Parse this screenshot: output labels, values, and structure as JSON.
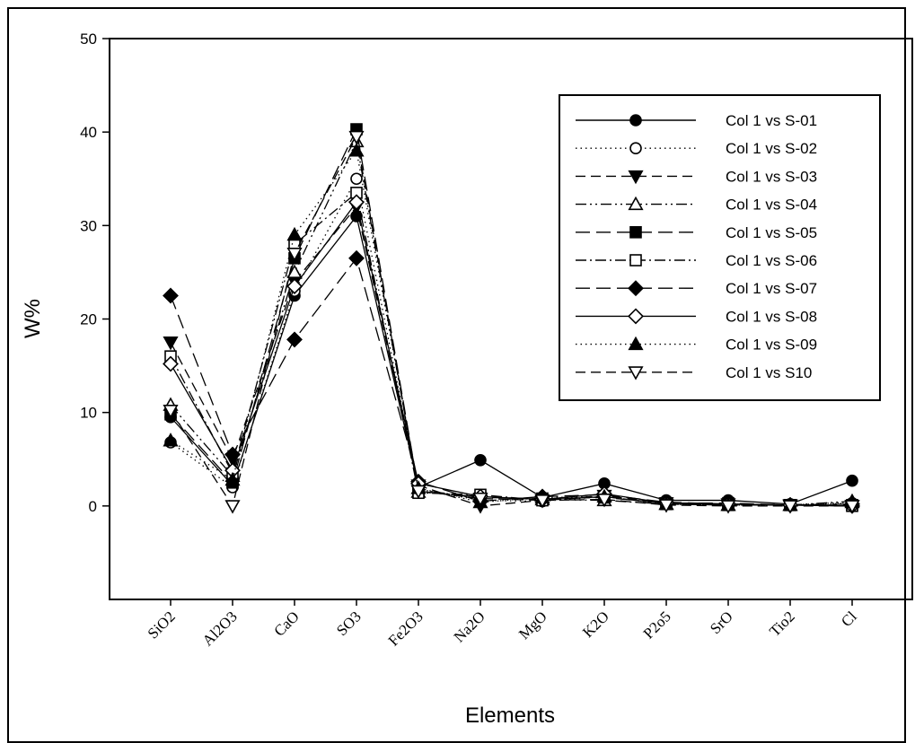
{
  "chart_data": {
    "type": "line",
    "title": "",
    "xlabel": "Elements",
    "ylabel": "W%",
    "ylim": [
      -10,
      50
    ],
    "yticks": [
      0,
      10,
      20,
      30,
      40,
      50
    ],
    "grid": false,
    "legend_position": "top-right",
    "categories": [
      "SiO2",
      "Al2O3",
      "CaO",
      "SO3",
      "Fe2O3",
      "Na2O",
      "MgO",
      "K2O",
      "P2o5",
      "SrO",
      "Tio2",
      "Cl"
    ],
    "series": [
      {
        "name": "Col 1 vs S-01",
        "line": "solid",
        "marker": "circle",
        "filled": true,
        "values": [
          9.5,
          2.2,
          22.5,
          31.0,
          2.0,
          4.9,
          0.9,
          2.4,
          0.6,
          0.6,
          0.2,
          2.7
        ]
      },
      {
        "name": "Col 1 vs S-02",
        "line": "dotted",
        "marker": "circle",
        "filled": false,
        "values": [
          6.8,
          2.0,
          23.0,
          35.0,
          1.8,
          0.6,
          0.5,
          1.0,
          0.2,
          0.1,
          0.1,
          0.3
        ]
      },
      {
        "name": "Col 1 vs S-03",
        "line": "dashed",
        "marker": "triangle-down",
        "filled": true,
        "values": [
          17.5,
          5.0,
          24.0,
          32.0,
          2.2,
          0.0,
          0.6,
          1.1,
          0.3,
          0.2,
          0.1,
          0.0
        ]
      },
      {
        "name": "Col 1 vs S-04",
        "line": "dashdotdot",
        "marker": "triangle-up",
        "filled": false,
        "values": [
          10.8,
          3.2,
          25.0,
          39.0,
          1.5,
          1.0,
          0.7,
          0.6,
          0.2,
          0.1,
          0.1,
          0.5
        ]
      },
      {
        "name": "Col 1 vs S-05",
        "line": "longdash",
        "marker": "square",
        "filled": true,
        "values": [
          9.8,
          2.5,
          26.5,
          40.3,
          1.7,
          0.9,
          0.8,
          0.9,
          0.3,
          0.3,
          0.1,
          0.1
        ]
      },
      {
        "name": "Col 1 vs S-06",
        "line": "dashdot",
        "marker": "square",
        "filled": false,
        "values": [
          16.0,
          3.5,
          28.0,
          33.5,
          1.4,
          1.2,
          0.6,
          1.0,
          0.2,
          0.1,
          0.1,
          0.0
        ]
      },
      {
        "name": "Col 1 vs S-07",
        "line": "longdash",
        "marker": "diamond",
        "filled": true,
        "values": [
          22.5,
          5.5,
          17.8,
          26.5,
          2.6,
          0.5,
          1.0,
          1.2,
          0.4,
          0.2,
          0.1,
          0.2
        ]
      },
      {
        "name": "Col 1 vs S-08",
        "line": "solid",
        "marker": "diamond",
        "filled": false,
        "values": [
          15.2,
          3.8,
          23.5,
          32.5,
          2.4,
          1.0,
          0.7,
          1.3,
          0.3,
          0.2,
          0.1,
          0.0
        ]
      },
      {
        "name": "Col 1 vs S-09",
        "line": "dotted",
        "marker": "triangle-up",
        "filled": true,
        "values": [
          7.0,
          2.8,
          29.0,
          38.0,
          1.9,
          0.4,
          0.9,
          1.0,
          0.2,
          0.1,
          0.1,
          0.4
        ]
      },
      {
        "name": "Col 1 vs S10",
        "line": "dashed",
        "marker": "triangle-down",
        "filled": false,
        "values": [
          10.2,
          0.0,
          27.0,
          39.5,
          1.6,
          0.8,
          0.6,
          0.7,
          0.1,
          0.0,
          0.0,
          0.0
        ]
      }
    ]
  }
}
